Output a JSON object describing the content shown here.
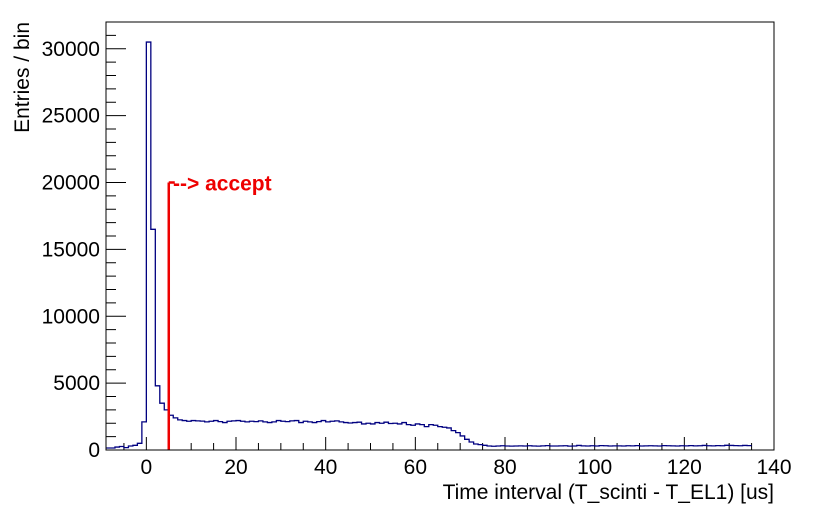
{
  "chart_data": {
    "type": "histogram",
    "xlabel": "Time interval (T_scinti - T_EL1) [us]",
    "ylabel": "Entries / bin",
    "xlim": [
      -9,
      140
    ],
    "ylim": [
      0,
      32000
    ],
    "bin_width": 1,
    "x_ticks": [
      0,
      20,
      40,
      60,
      80,
      100,
      120,
      140
    ],
    "y_ticks": [
      0,
      5000,
      10000,
      15000,
      20000,
      25000,
      30000
    ],
    "x_tick_labels": [
      "0",
      "20",
      "40",
      "60",
      "80",
      "100",
      "120",
      "140"
    ],
    "y_tick_labels": [
      "0",
      "5000",
      "10000",
      "15000",
      "20000",
      "25000",
      "30000"
    ],
    "series": [
      {
        "color": "#000080",
        "x_low_edges": [
          -9,
          -8,
          -7,
          -6,
          -5,
          -4,
          -3,
          -2,
          -1,
          0,
          1,
          2,
          3,
          4,
          5,
          6,
          7,
          8,
          9,
          10,
          11,
          12,
          13,
          14,
          15,
          16,
          17,
          18,
          19,
          20,
          21,
          22,
          23,
          24,
          25,
          26,
          27,
          28,
          29,
          30,
          31,
          32,
          33,
          34,
          35,
          36,
          37,
          38,
          39,
          40,
          41,
          42,
          43,
          44,
          45,
          46,
          47,
          48,
          49,
          50,
          51,
          52,
          53,
          54,
          55,
          56,
          57,
          58,
          59,
          60,
          61,
          62,
          63,
          64,
          65,
          66,
          67,
          68,
          69,
          70,
          71,
          72,
          73,
          74,
          75,
          76,
          77,
          78,
          79,
          80,
          81,
          82,
          83,
          84,
          85,
          86,
          87,
          88,
          89,
          90,
          91,
          92,
          93,
          94,
          95,
          96,
          97,
          98,
          99,
          100,
          101,
          102,
          103,
          104,
          105,
          106,
          107,
          108,
          109,
          110,
          111,
          112,
          113,
          114,
          115,
          116,
          117,
          118,
          119,
          120,
          121,
          122,
          123,
          124,
          125,
          126,
          127,
          128,
          129,
          130,
          131,
          132,
          133,
          134,
          135,
          136,
          137,
          138,
          139
        ],
        "values": [
          150,
          150,
          220,
          260,
          180,
          300,
          350,
          500,
          2100,
          30500,
          16500,
          4800,
          3500,
          3000,
          2600,
          2400,
          2250,
          2200,
          2150,
          2200,
          2180,
          2160,
          2100,
          2150,
          2200,
          2120,
          2050,
          2150,
          2180,
          2200,
          2150,
          2100,
          2150,
          2120,
          2180,
          2100,
          2050,
          2100,
          2200,
          2150,
          2120,
          2180,
          2200,
          2050,
          2150,
          2100,
          2050,
          2120,
          2200,
          2100,
          2150,
          2180,
          2100,
          2050,
          2020,
          2050,
          2080,
          1950,
          2000,
          1950,
          2050,
          2000,
          2080,
          1980,
          2000,
          1950,
          2050,
          1900,
          1850,
          1950,
          1900,
          1750,
          1900,
          1850,
          1750,
          1700,
          1650,
          1450,
          1300,
          1050,
          800,
          600,
          450,
          400,
          350,
          300,
          280,
          300,
          320,
          300,
          290,
          300,
          310,
          300,
          320,
          300,
          290,
          310,
          330,
          300,
          300,
          310,
          320,
          290,
          300,
          340,
          310,
          300,
          320,
          300,
          330,
          320,
          300,
          310,
          310,
          300,
          320,
          310,
          330,
          300,
          310,
          320,
          310,
          300,
          330,
          320,
          310,
          300,
          320,
          310,
          330,
          310,
          320,
          340,
          320,
          310,
          330,
          320,
          350,
          340,
          330,
          320,
          340,
          330
        ]
      }
    ],
    "cut_line": {
      "x": 5,
      "y_top": 20000,
      "color": "#ee0000"
    },
    "annotation": {
      "text": "--> accept",
      "x": 5.5,
      "y": 20000,
      "color": "#ee0000"
    },
    "grid": false,
    "legend": "none"
  }
}
